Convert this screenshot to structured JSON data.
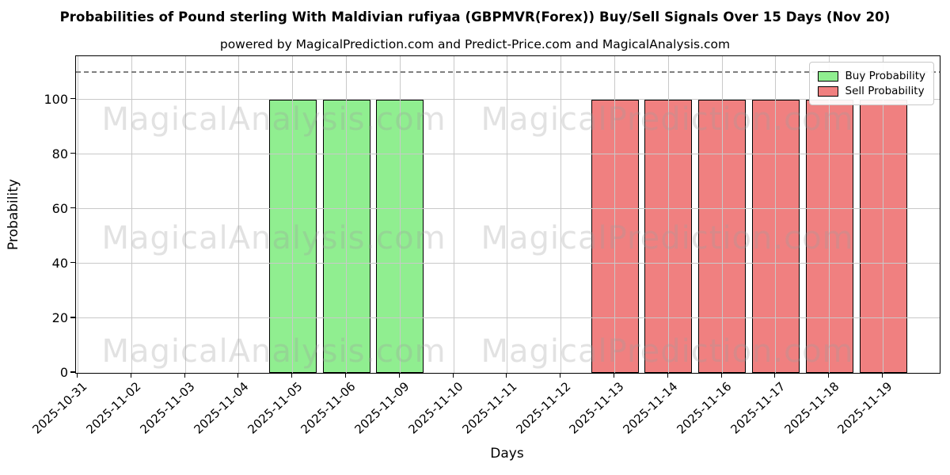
{
  "title": "Probabilities of Pound sterling With Maldivian rufiyaa (GBPMVR(Forex)) Buy/Sell Signals Over 15 Days (Nov 20)",
  "subtitle": "powered by MagicalPrediction.com and Predict-Price.com and MagicalAnalysis.com",
  "watermark": {
    "left": "MagicalAnalysis.com",
    "right": "MagicalPrediction.com"
  },
  "chart_data": {
    "type": "bar",
    "title": "Probabilities of Pound sterling With Maldivian rufiyaa (GBPMVR(Forex)) Buy/Sell Signals Over 15 Days (Nov 20)",
    "xlabel": "Days",
    "ylabel": "Probability",
    "categories": [
      "2025-10-31",
      "2025-11-02",
      "2025-11-03",
      "2025-11-04",
      "2025-11-05",
      "2025-11-06",
      "2025-11-09",
      "2025-11-10",
      "2025-11-11",
      "2025-11-12",
      "2025-11-13",
      "2025-11-14",
      "2025-11-16",
      "2025-11-17",
      "2025-11-18",
      "2025-11-19"
    ],
    "series": [
      {
        "name": "Buy Probability",
        "color": "#90ee90",
        "values": [
          0,
          0,
          0,
          0,
          100,
          100,
          100,
          0,
          0,
          0,
          0,
          0,
          0,
          0,
          0,
          0
        ]
      },
      {
        "name": "Sell Probability",
        "color": "#f08080",
        "values": [
          0,
          0,
          0,
          0,
          0,
          0,
          0,
          0,
          0,
          0,
          100,
          100,
          100,
          100,
          100,
          100
        ]
      }
    ],
    "bar_edge_color": "#000000",
    "yticks": [
      0,
      20,
      40,
      60,
      80,
      100
    ],
    "ylim": [
      0,
      115.8
    ],
    "dashed_line_y": 110,
    "dashed_line_color": "#7f7f7f",
    "grid": true,
    "grid_color": "#c9c9c9",
    "legend_position": "upper right"
  }
}
